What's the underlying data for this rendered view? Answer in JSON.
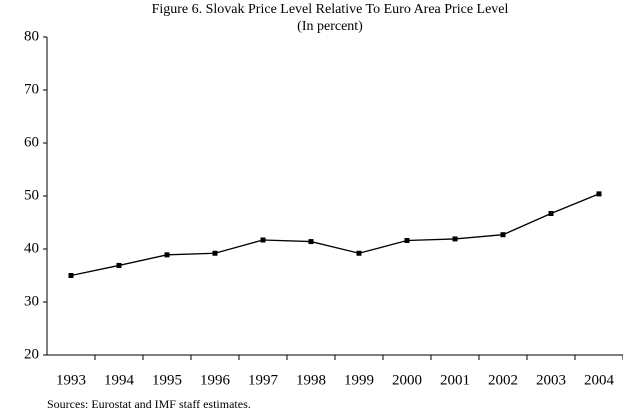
{
  "chart_data": {
    "type": "line",
    "title": "Figure 6. Slovak Price Level Relative To Euro Area Price Level",
    "subtitle": "(In percent)",
    "note": "Sources: Eurostat and IMF staff estimates.",
    "categories": [
      "1993",
      "1994",
      "1995",
      "1996",
      "1997",
      "1998",
      "1999",
      "2000",
      "2001",
      "2002",
      "2003",
      "2004"
    ],
    "series": [
      {
        "name": "Slovak price level",
        "color": "#000000",
        "values": [
          35.0,
          36.9,
          38.9,
          39.2,
          41.7,
          41.4,
          39.2,
          41.6,
          41.9,
          42.7,
          46.7,
          50.4
        ]
      }
    ],
    "ylim": [
      20,
      80
    ],
    "yticks": [
      20,
      30,
      40,
      50,
      60,
      70,
      80
    ],
    "grid": false
  }
}
